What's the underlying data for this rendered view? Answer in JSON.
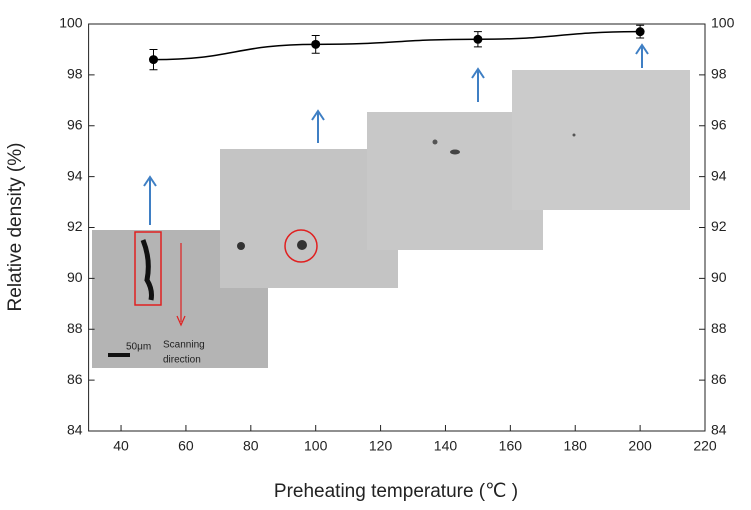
{
  "chart_data": {
    "type": "line",
    "xlabel": "Preheating temperature (℃ )",
    "ylabel": "Relative density (%)",
    "x": [
      50,
      100,
      150,
      200
    ],
    "series": [
      {
        "color": "#000000",
        "values": [
          98.6,
          99.2,
          99.4,
          99.7
        ],
        "errors": [
          0.4,
          0.35,
          0.3,
          0.25
        ]
      }
    ],
    "xlim": [
      30,
      220
    ],
    "xticks": [
      40,
      60,
      80,
      100,
      120,
      140,
      160,
      180,
      200,
      220
    ],
    "ylim": [
      84,
      100
    ],
    "yticks": [
      84,
      86,
      88,
      90,
      92,
      94,
      96,
      98,
      100
    ],
    "mirror_y_axis": true,
    "annotations": {
      "scale_bar": "50μm",
      "scanning": "Scanning",
      "direction": "direction"
    }
  }
}
